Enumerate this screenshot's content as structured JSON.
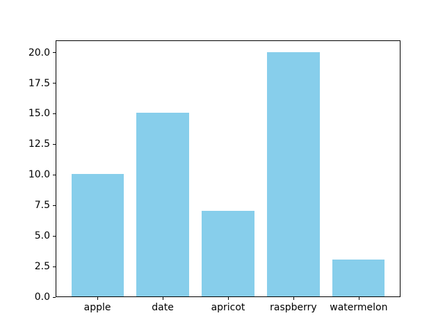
{
  "colors": {
    "background": "#ffffff",
    "spine": "#000000",
    "tick_text": "#000000",
    "bar": "#87CEEB"
  },
  "chart_data": {
    "type": "bar",
    "categories": [
      "apple",
      "date",
      "apricot",
      "raspberry",
      "watermelon"
    ],
    "values": [
      10,
      15,
      7,
      20,
      3
    ],
    "title": "",
    "xlabel": "",
    "ylabel": "",
    "ylim": [
      0,
      21
    ],
    "xlim": [
      -0.64,
      4.64
    ],
    "yticks": [
      0.0,
      2.5,
      5.0,
      7.5,
      10.0,
      12.5,
      15.0,
      17.5,
      20.0
    ],
    "ytick_labels": [
      "0.0",
      "2.5",
      "5.0",
      "7.5",
      "10.0",
      "12.5",
      "15.0",
      "17.5",
      "20.0"
    ],
    "bar_width_units": 0.8,
    "bar_color_hex": "#87CEEB",
    "grid": false,
    "legend": null
  }
}
